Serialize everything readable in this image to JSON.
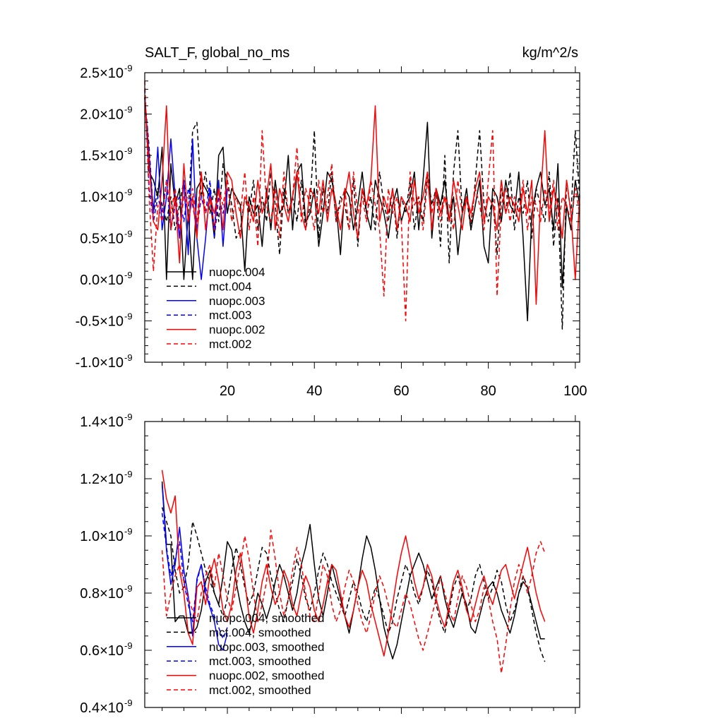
{
  "chart_data": [
    {
      "type": "line",
      "title": "SALT_F, global_no_ms",
      "units_label": "kg/m^2/s",
      "xlim": [
        1,
        101
      ],
      "ylim": [
        -1e-09,
        2.5e-09
      ],
      "x_ticks": [
        20,
        40,
        60,
        80,
        100
      ],
      "x_tick_labels": [
        "20",
        "40",
        "60",
        "80",
        "100"
      ],
      "y_ticks": [
        {
          "mantissa": "2.5",
          "value": 2.5e-09
        },
        {
          "mantissa": "2.0",
          "value": 2e-09
        },
        {
          "mantissa": "1.5",
          "value": 1.5e-09
        },
        {
          "mantissa": "1.0",
          "value": 1e-09
        },
        {
          "mantissa": "0.5",
          "value": 5e-10
        },
        {
          "mantissa": "0.0",
          "value": 0.0
        },
        {
          "mantissa": "-0.5",
          "value": -5e-10
        },
        {
          "mantissa": "-1.0",
          "value": -1e-09
        }
      ],
      "y_tick_suffix": "×10",
      "y_tick_exponent": "-9",
      "legend_position": "bottom-left",
      "series": [
        {
          "name": "nuopc.004",
          "color": "#000000",
          "dash": "solid",
          "x_start": 1,
          "values": [
            2.2,
            1.3,
            1.2,
            1.0,
            1.6,
            0.0,
            1.4,
            0.9,
            1.1,
            0.0,
            0.8,
            0.0,
            1.1,
            1.2,
            1.1,
            1.0,
            0.5,
            1.5,
            1.6,
            0.8,
            1.1,
            1.0,
            0.9,
            0.1,
            1.0,
            0.8,
            0.9,
            0.4,
            1.1,
            0.6,
            1.2,
            0.8,
            0.9,
            1.5,
            0.6,
            1.3,
            1.4,
            0.7,
            0.8,
            1.1,
            0.4,
            0.8,
            1.3,
            1.2,
            0.9,
            0.3,
            1.1,
            1.0,
            0.6,
            0.9,
            1.3,
            0.8,
            0.6,
            1.2,
            1.0,
            0.8,
            0.5,
            0.9,
            1.1,
            0.7,
            0.9,
            1.0,
            1.3,
            0.6,
            1.2,
            1.9,
            0.5,
            1.1,
            0.9,
            1.2,
            0.7,
            1.0,
            0.3,
            0.8,
            1.1,
            0.6,
            0.9,
            1.2,
            0.4,
            0.2,
            1.1,
            1.0,
            0.7,
            1.2,
            0.9,
            0.8,
            1.3,
            0.5,
            -0.5,
            0.8,
            1.1,
            1.3,
            0.9,
            1.1,
            0.6,
            1.4,
            -0.1,
            0.9,
            0.6,
            1.2,
            0.9
          ]
        },
        {
          "name": "mct.004",
          "color": "#000000",
          "dash": "dash",
          "x_start": 1,
          "values": [
            2.2,
            1.6,
            0.8,
            1.1,
            0.9,
            0.7,
            1.0,
            0.6,
            0.9,
            1.2,
            0.8,
            1.8,
            1.9,
            1.0,
            1.3,
            0.8,
            1.1,
            0.7,
            1.4,
            1.2,
            0.9,
            0.5,
            0.6,
            1.0,
            0.8,
            1.2,
            0.6,
            1.0,
            0.7,
            1.3,
            0.9,
            0.3,
            1.1,
            0.8,
            1.0,
            0.7,
            1.2,
            0.6,
            0.9,
            1.8,
            0.5,
            1.1,
            0.8,
            1.3,
            0.7,
            1.0,
            0.9,
            0.6,
            1.2,
            0.4,
            1.1,
            0.8,
            1.0,
            0.6,
            1.3,
            0.9,
            0.7,
            1.1,
            0.5,
            1.0,
            0.8,
            1.2,
            0.6,
            1.0,
            0.7,
            1.3,
            0.9,
            1.1,
            0.4,
            1.5,
            0.2,
            1.3,
            1.8,
            0.8,
            1.0,
            0.6,
            1.2,
            1.8,
            0.9,
            0.7,
            1.0,
            0.3,
            1.1,
            0.8,
            1.3,
            0.6,
            1.0,
            0.8,
            1.2,
            0.5,
            1.1,
            0.9,
            0.7,
            1.3,
            0.4,
            1.0,
            -0.6,
            1.2,
            0.8,
            1.8,
            1.0
          ]
        },
        {
          "name": "nuopc.003",
          "color": "#0000ff",
          "dash": "solid",
          "x_start": 1,
          "values": [
            2.2,
            1.5,
            0.8,
            1.6,
            0.6,
            1.0,
            1.7,
            1.0,
            0.5,
            1.2,
            0.3,
            1.7,
            0.5,
            0.0,
            0.5,
            1.1,
            0.6,
            1.2,
            0.4,
            1.1
          ]
        },
        {
          "name": "mct.003",
          "color": "#0000ff",
          "dash": "dash",
          "x_start": 1,
          "values": [
            2.3,
            1.1,
            0.7,
            1.0,
            0.8,
            1.2,
            0.6,
            0.9,
            1.0,
            0.7,
            1.1,
            0.9,
            0.6,
            1.0,
            0.8,
            1.2,
            0.5,
            1.0,
            0.8,
            1.1
          ]
        },
        {
          "name": "nuopc.002",
          "color": "#ff0000",
          "dash": "solid",
          "x_start": 1,
          "values": [
            2.2,
            1.4,
            0.7,
            0.6,
            1.2,
            2.1,
            0.6,
            1.0,
            0.2,
            1.4,
            0.7,
            1.0,
            0.5,
            1.3,
            0.6,
            1.0,
            0.8,
            1.1,
            0.6,
            1.3,
            1.2,
            0.8,
            0.5,
            1.0,
            0.9,
            0.7,
            1.2,
            0.8,
            1.0,
            1.4,
            0.6,
            1.1,
            0.9,
            0.7,
            1.0,
            1.3,
            0.8,
            0.6,
            1.1,
            1.0,
            0.8,
            1.2,
            0.7,
            1.1,
            0.9,
            0.6,
            1.0,
            1.3,
            0.8,
            0.5,
            1.1,
            0.9,
            1.2,
            2.1,
            0.7,
            1.0,
            0.8,
            1.1,
            0.6,
            1.0,
            0.9,
            0.7,
            1.2,
            0.8,
            1.0,
            1.3,
            0.6,
            1.1,
            0.8,
            1.0,
            0.7,
            1.2,
            0.9,
            0.6,
            1.0,
            0.8,
            1.1,
            1.3,
            0.7,
            1.0,
            0.9,
            0.6,
            1.2,
            0.8,
            1.0,
            0.9,
            0.7,
            1.1,
            0.8,
            1.2,
            -0.3,
            1.0,
            1.8,
            0.7,
            1.1,
            0.9,
            0.5,
            1.2,
            0.8,
            0.0,
            1.0
          ]
        },
        {
          "name": "mct.002",
          "color": "#ff0000",
          "dash": "dash",
          "x_start": 1,
          "values": [
            2.4,
            1.0,
            0.1,
            0.9,
            0.7,
            1.2,
            0.8,
            1.1,
            0.6,
            1.0,
            0.9,
            1.1,
            0.7,
            1.3,
            0.8,
            1.0,
            0.6,
            1.1,
            0.9,
            1.2,
            0.7,
            1.0,
            0.8,
            1.3,
            0.6,
            1.0,
            0.4,
            1.8,
            0.9,
            0.7,
            1.1,
            0.5,
            1.3,
            0.8,
            1.0,
            1.6,
            0.7,
            1.1,
            0.9,
            0.6,
            1.2,
            0.8,
            1.0,
            1.4,
            0.7,
            0.9,
            1.1,
            0.6,
            1.3,
            0.8,
            1.0,
            0.7,
            1.2,
            0.9,
            0.6,
            -0.2,
            1.1,
            0.8,
            1.0,
            0.7,
            -0.5,
            1.3,
            0.9,
            1.0,
            0.6,
            1.2,
            0.8,
            1.1,
            0.7,
            1.0,
            0.9,
            0.6,
            1.2,
            0.8,
            1.0,
            0.7,
            1.1,
            0.9,
            0.6,
            1.2,
            1.8,
            -0.2,
            0.9,
            1.1,
            0.7,
            1.0,
            0.8,
            1.2,
            0.6,
            1.0,
            0.9,
            0.7,
            1.1,
            0.8,
            1.2,
            0.6,
            1.0,
            0.9,
            0.7,
            1.1,
            0.8
          ]
        }
      ]
    },
    {
      "type": "line",
      "title": "",
      "xlim": [
        1,
        101
      ],
      "ylim": [
        4e-10,
        1.4e-09
      ],
      "x_ticks": [
        20,
        40,
        60,
        80,
        100
      ],
      "x_tick_labels": [],
      "y_ticks": [
        {
          "mantissa": "1.4",
          "value": 1.4e-09
        },
        {
          "mantissa": "1.2",
          "value": 1.2e-09
        },
        {
          "mantissa": "1.0",
          "value": 1e-09
        },
        {
          "mantissa": "0.8",
          "value": 8e-10
        },
        {
          "mantissa": "0.6",
          "value": 6e-10
        },
        {
          "mantissa": "0.4",
          "value": 4e-10
        }
      ],
      "y_tick_suffix": "×10",
      "y_tick_exponent": "-9",
      "legend_position": "bottom-left",
      "series": [
        {
          "name": "nuopc.004, smoothed",
          "color": "#000000",
          "dash": "solid",
          "x_start": 5,
          "values": [
            1.19,
            0.97,
            0.97,
            0.7,
            0.72,
            0.72,
            0.66,
            0.66,
            0.68,
            0.74,
            0.84,
            0.88,
            0.8,
            0.76,
            0.86,
            0.98,
            0.95,
            0.84,
            0.76,
            0.7,
            0.66,
            0.72,
            0.8,
            0.76,
            0.71,
            0.76,
            0.84,
            0.9,
            0.86,
            0.8,
            0.74,
            0.8,
            0.9,
            0.96,
            1.04,
            0.9,
            0.78,
            0.72,
            0.8,
            0.9,
            0.84,
            0.78,
            0.72,
            0.66,
            0.74,
            0.82,
            0.92,
            1.0,
            0.96,
            0.88,
            0.78,
            0.68,
            0.62,
            0.57,
            0.62,
            0.7,
            0.78,
            0.86,
            0.9,
            0.94,
            0.9,
            0.84,
            0.78,
            0.82,
            0.86,
            0.78,
            0.72,
            0.68,
            0.74,
            0.8,
            0.76,
            0.68,
            0.66,
            0.72,
            0.78,
            0.82,
            0.84,
            0.8,
            0.74,
            0.7,
            0.66,
            0.72,
            0.8,
            0.84,
            0.82,
            0.76,
            0.7,
            0.64,
            0.64
          ]
        },
        {
          "name": "mct.004, smoothed",
          "color": "#000000",
          "dash": "dash",
          "x_start": 5,
          "values": [
            1.1,
            1.05,
            1.0,
            0.88,
            0.8,
            0.82,
            0.9,
            1.05,
            1.0,
            0.94,
            0.88,
            0.84,
            0.8,
            0.76,
            0.72,
            0.78,
            0.88,
            0.96,
            0.9,
            0.82,
            0.76,
            0.8,
            0.88,
            0.96,
            0.94,
            0.86,
            0.8,
            0.74,
            0.7,
            0.78,
            0.84,
            0.92,
            0.86,
            0.78,
            0.74,
            0.8,
            0.88,
            0.94,
            0.9,
            0.84,
            0.8,
            0.76,
            0.72,
            0.78,
            0.84,
            0.8,
            0.74,
            0.7,
            0.76,
            0.82,
            0.78,
            0.72,
            0.66,
            0.7,
            0.78,
            0.84,
            0.9,
            0.86,
            0.8,
            0.76,
            0.82,
            0.88,
            0.84,
            0.76,
            0.7,
            0.66,
            0.74,
            0.82,
            0.86,
            0.8,
            0.74,
            0.78,
            0.86,
            0.9,
            0.84,
            0.78,
            0.82,
            0.88,
            0.84,
            0.76,
            0.7,
            0.74,
            0.8,
            0.86,
            0.82,
            0.74,
            0.66,
            0.6,
            0.56
          ]
        },
        {
          "name": "nuopc.003, smoothed",
          "color": "#0000ff",
          "dash": "solid",
          "x_start": 5,
          "values": [
            1.18,
            0.95,
            0.83,
            0.9,
            1.03,
            0.88,
            0.79,
            0.65,
            0.85,
            0.9,
            0.8,
            0.75,
            0.7,
            0.62,
            0.6,
            0.66
          ]
        },
        {
          "name": "mct.003, smoothed",
          "color": "#0000ff",
          "dash": "dash",
          "x_start": 5,
          "values": [
            1.08,
            0.96,
            0.86,
            0.92,
            0.98,
            0.84,
            0.76,
            0.7,
            0.84,
            0.9,
            0.82,
            0.76,
            0.72,
            0.68,
            0.64,
            0.68
          ]
        },
        {
          "name": "nuopc.002, smoothed",
          "color": "#ff0000",
          "dash": "solid",
          "x_start": 5,
          "values": [
            1.23,
            1.13,
            1.08,
            1.14,
            0.88,
            0.8,
            0.66,
            0.62,
            0.82,
            0.84,
            0.76,
            0.86,
            0.92,
            0.84,
            0.74,
            0.7,
            0.76,
            0.88,
            0.94,
            0.84,
            0.72,
            0.66,
            0.74,
            0.84,
            0.9,
            0.82,
            0.76,
            0.8,
            0.88,
            0.84,
            0.76,
            0.72,
            0.8,
            0.86,
            0.82,
            0.74,
            0.7,
            0.76,
            0.84,
            0.9,
            0.88,
            0.8,
            0.72,
            0.68,
            0.74,
            0.82,
            0.88,
            0.84,
            0.76,
            0.7,
            0.64,
            0.58,
            0.66,
            0.76,
            0.86,
            0.94,
            1.0,
            0.92,
            0.84,
            0.78,
            0.82,
            0.9,
            0.86,
            0.78,
            0.72,
            0.68,
            0.76,
            0.84,
            0.88,
            0.82,
            0.74,
            0.7,
            0.76,
            0.82,
            0.86,
            0.8,
            0.76,
            0.82,
            0.88,
            0.9,
            0.84,
            0.78,
            0.84,
            0.9,
            0.96,
            0.88,
            0.8,
            0.74,
            0.7
          ]
        },
        {
          "name": "mct.002, smoothed",
          "color": "#ff0000",
          "dash": "dash",
          "x_start": 5,
          "values": [
            0.95,
            0.72,
            0.8,
            0.86,
            0.9,
            0.84,
            0.78,
            0.74,
            0.7,
            0.8,
            0.86,
            0.9,
            0.82,
            0.94,
            0.86,
            0.78,
            0.74,
            0.82,
            0.9,
            1.0,
            0.92,
            0.8,
            0.7,
            0.76,
            0.84,
            1.02,
            0.92,
            0.8,
            0.72,
            0.78,
            0.88,
            0.96,
            0.9,
            0.8,
            0.72,
            0.7,
            0.8,
            0.9,
            0.86,
            0.76,
            0.7,
            0.74,
            0.82,
            0.88,
            0.84,
            0.76,
            0.7,
            0.66,
            0.72,
            0.8,
            0.86,
            0.82,
            0.76,
            0.7,
            0.68,
            0.74,
            0.8,
            0.76,
            0.7,
            0.64,
            0.6,
            0.66,
            0.72,
            0.78,
            0.86,
            0.8,
            0.74,
            0.7,
            0.78,
            0.86,
            0.82,
            0.76,
            0.7,
            0.74,
            0.82,
            0.78,
            0.7,
            0.64,
            0.52,
            0.62,
            0.74,
            0.84,
            0.9,
            0.86,
            0.8,
            0.86,
            0.94,
            0.98,
            0.94
          ]
        }
      ]
    }
  ]
}
